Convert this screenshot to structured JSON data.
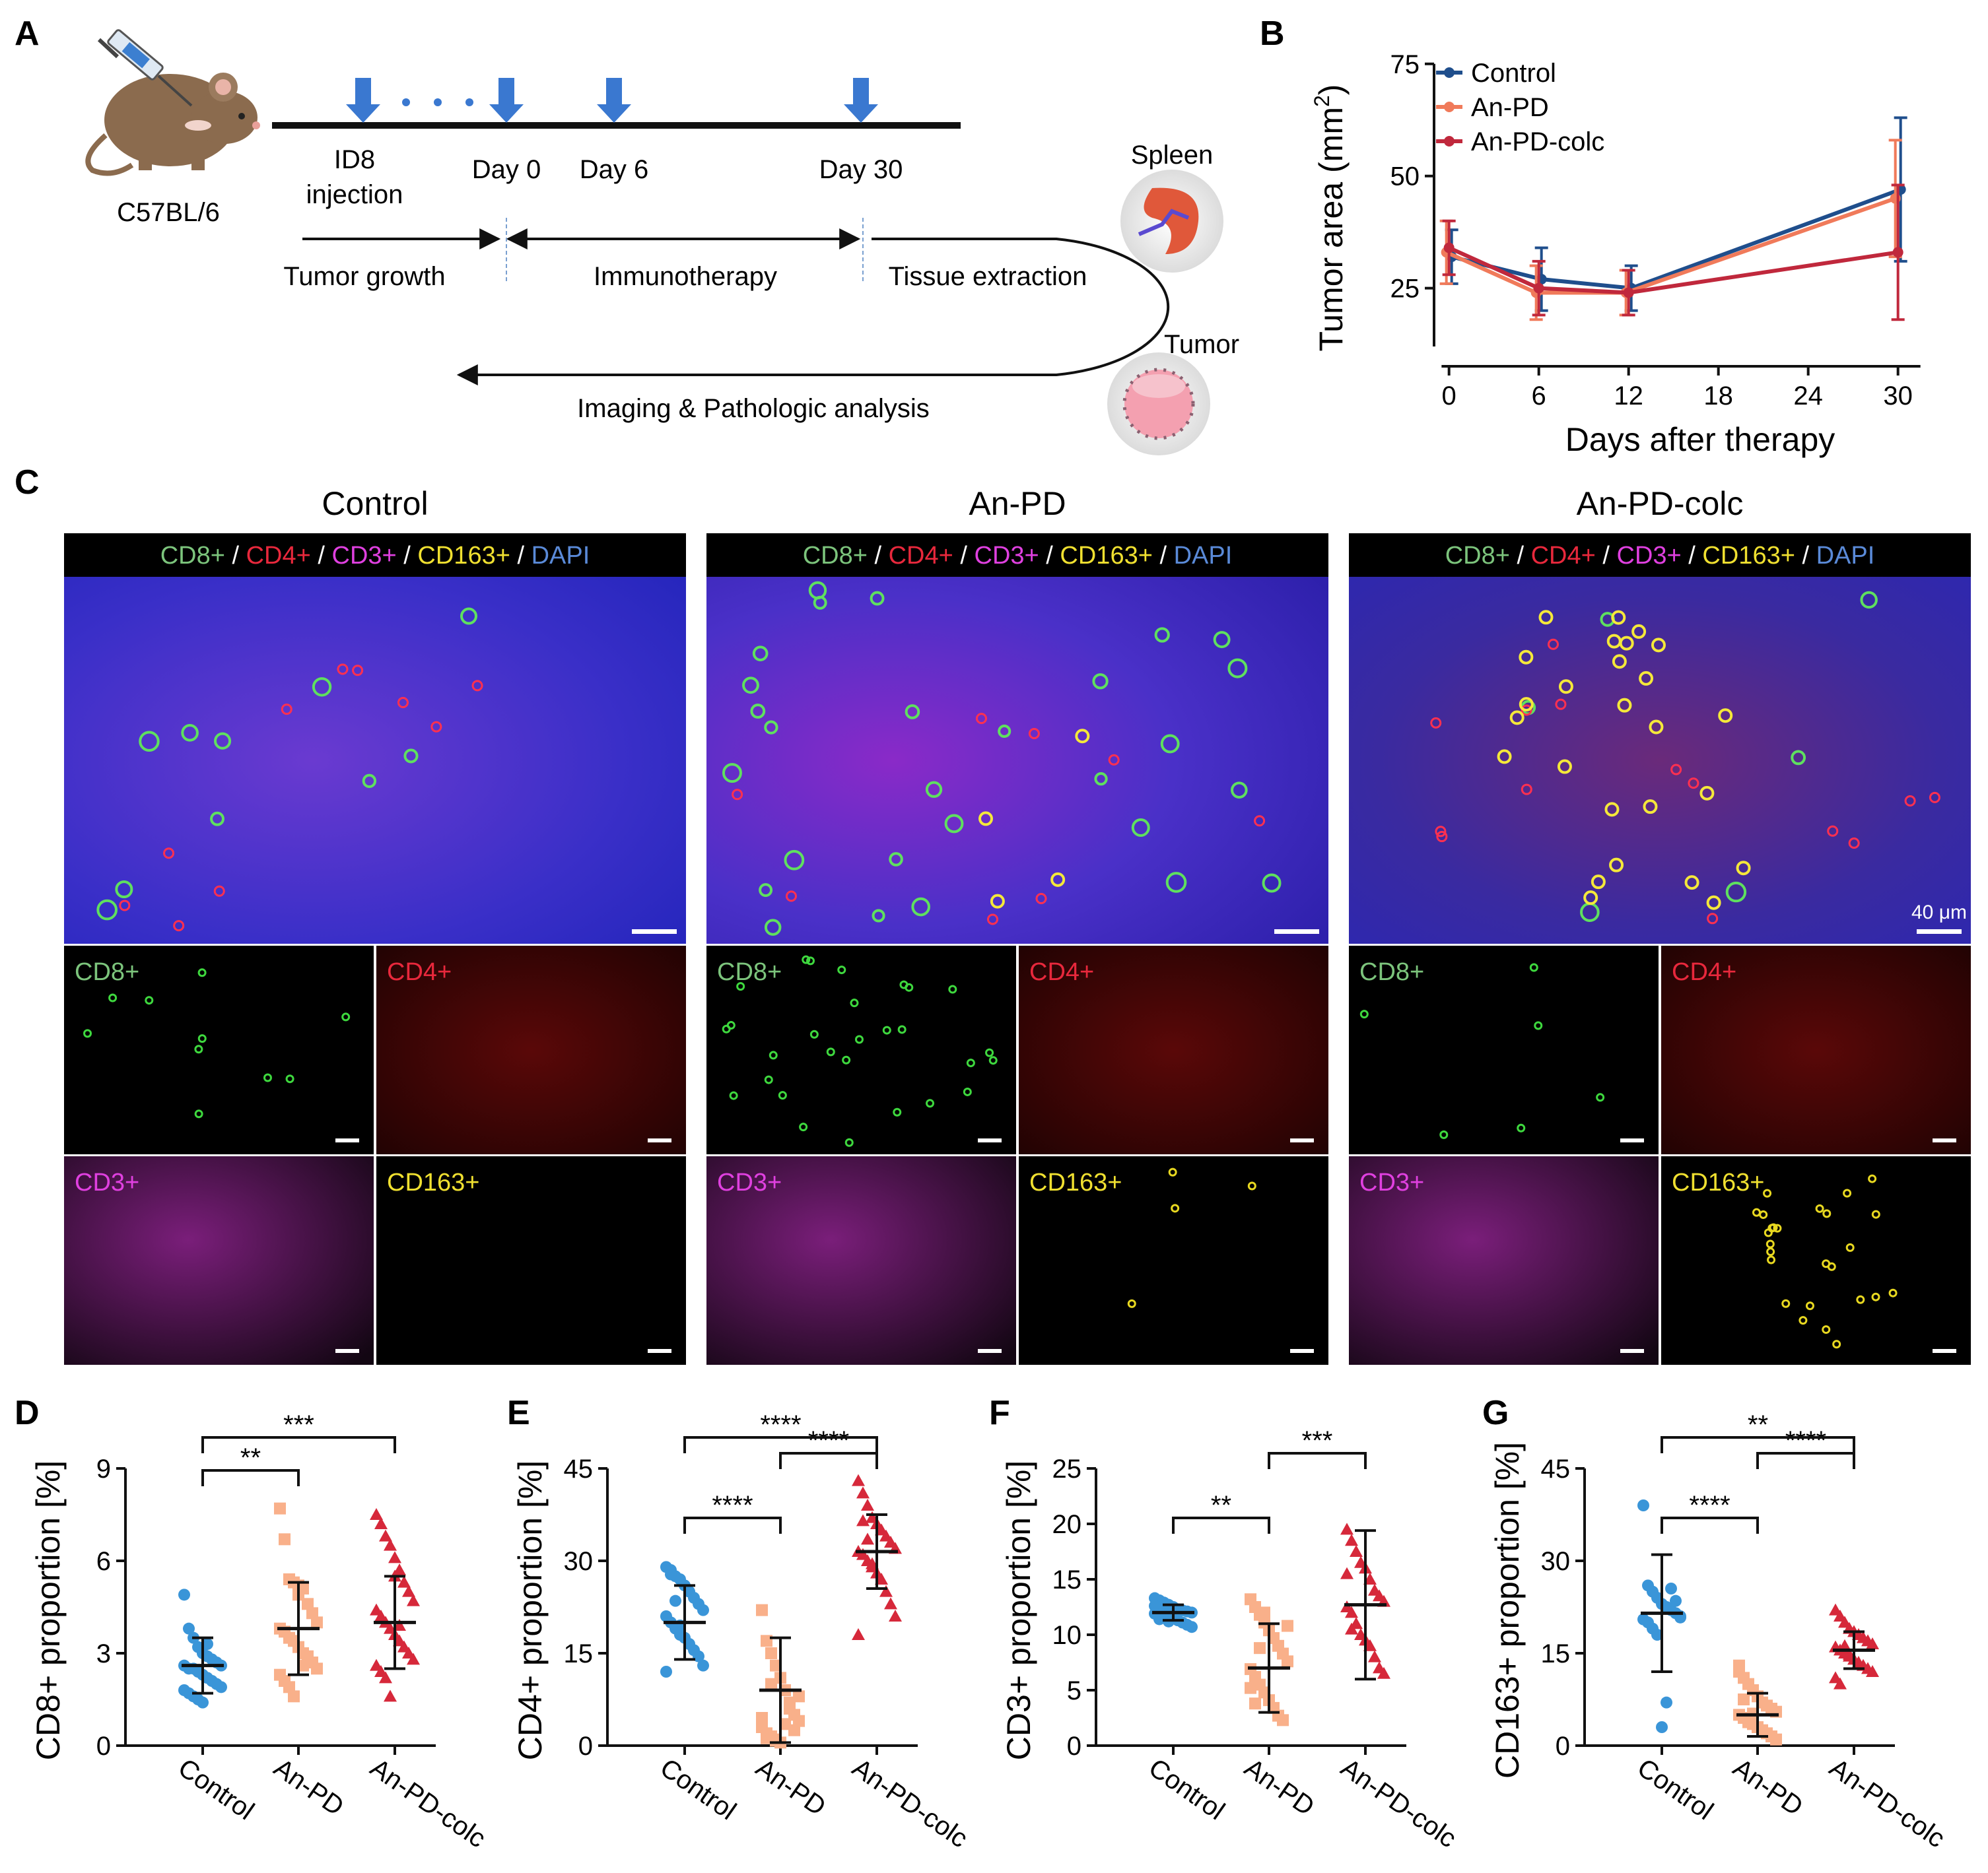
{
  "panel_letters": {
    "a": "A",
    "b": "B",
    "c": "C",
    "d": "D",
    "e": "E",
    "f": "F",
    "g": "G"
  },
  "schematic": {
    "mouse_label": "C57BL/6",
    "events": [
      {
        "line1": "ID8",
        "line2": "injection"
      },
      {
        "line1": "Day 0",
        "line2": ""
      },
      {
        "line1": "Day 6",
        "line2": ""
      },
      {
        "line1": "Day 30",
        "line2": ""
      }
    ],
    "phases": [
      "Tumor growth",
      "Immunotherapy",
      "Tissue extraction"
    ],
    "return_label": "Imaging & Pathologic analysis",
    "organs": [
      "Spleen",
      "Tumor"
    ]
  },
  "colors": {
    "control": "#1f4e8c",
    "anpd": "#f07a5a",
    "anpdcolc": "#c0283c",
    "dot_control": "#3a95d8",
    "dot_anpd": "#f9b08a",
    "dot_colc": "#d6283a",
    "cd8": "#7cc47c",
    "cd4": "#e8283c",
    "cd3": "#e040e0",
    "cd163": "#f0e030",
    "dapi": "#5a8ad8"
  },
  "chart_data": [
    {
      "id": "B",
      "type": "line",
      "title": "",
      "xlabel": "Days after therapy",
      "ylabel": "Tumor area (mm",
      "ylabel_sup": "2",
      "ylabel_end": ")",
      "xticks": [
        0,
        6,
        12,
        18,
        24,
        30
      ],
      "yticks": [
        25,
        50,
        75
      ],
      "xlim": [
        -1,
        32
      ],
      "ylim": [
        12,
        76
      ],
      "series": [
        {
          "name": "Control",
          "x": [
            0,
            6,
            12,
            30
          ],
          "y": [
            32,
            27,
            25,
            47
          ],
          "err": [
            6,
            7,
            5,
            16
          ]
        },
        {
          "name": "An-PD",
          "x": [
            0,
            6,
            12,
            30
          ],
          "y": [
            33,
            24,
            24,
            45
          ],
          "err": [
            7,
            6,
            5,
            13
          ]
        },
        {
          "name": "An-PD-colc",
          "x": [
            0,
            6,
            12,
            30
          ],
          "y": [
            34,
            25,
            24,
            33
          ],
          "err": [
            6,
            6,
            5,
            15
          ]
        }
      ]
    },
    {
      "id": "D",
      "type": "scatter",
      "ylabel": "CD8+ proportion [%]",
      "categories": [
        "Control",
        "An-PD",
        "An-PD-colc"
      ],
      "yticks": [
        0,
        3,
        6,
        9
      ],
      "ylim": [
        0,
        9
      ],
      "means": [
        2.6,
        3.8,
        4.0
      ],
      "sd": [
        0.9,
        1.5,
        1.5
      ],
      "points": [
        [
          4.9,
          3.8,
          3.5,
          3.2,
          3.0,
          2.9,
          2.8,
          2.7,
          2.6,
          2.6,
          2.5,
          2.5,
          2.4,
          2.3,
          2.2,
          2.1,
          2.0,
          1.9,
          1.8,
          1.7,
          1.6,
          1.5,
          1.4,
          3.3
        ],
        [
          7.7,
          6.7,
          5.4,
          5.3,
          5.2,
          5.1,
          4.6,
          4.3,
          4.0,
          3.8,
          3.7,
          3.5,
          3.4,
          3.2,
          3.0,
          2.9,
          2.7,
          2.5,
          2.3,
          2.1,
          1.9,
          1.6,
          4.9,
          2.6
        ],
        [
          7.5,
          7.2,
          6.8,
          6.5,
          6.1,
          5.7,
          5.3,
          5.0,
          4.7,
          4.4,
          4.2,
          4.0,
          3.8,
          3.6,
          3.4,
          3.2,
          3.0,
          2.8,
          2.6,
          2.4,
          2.2,
          1.6,
          5.5,
          3.9
        ]
      ],
      "comparisons": [
        {
          "from": 0,
          "to": 1,
          "label": "**"
        },
        {
          "from": 0,
          "to": 2,
          "label": "***"
        }
      ]
    },
    {
      "id": "E",
      "type": "scatter",
      "ylabel": "CD4+ proportion [%]",
      "categories": [
        "Control",
        "An-PD",
        "An-PD-colc"
      ],
      "yticks": [
        0,
        15,
        30,
        45
      ],
      "ylim": [
        0,
        45
      ],
      "means": [
        20,
        9,
        31.5
      ],
      "sd": [
        6,
        8.5,
        6
      ],
      "points": [
        [
          29,
          28.5,
          27.5,
          27,
          26,
          25,
          24,
          23,
          22,
          21,
          20,
          19,
          18,
          17.5,
          16.5,
          15.5,
          14.5,
          13,
          12,
          27.8,
          23.5,
          19.5
        ],
        [
          22,
          17,
          15,
          13,
          11,
          9,
          7,
          5,
          4,
          3,
          2,
          1.5,
          1,
          0.5,
          3.5,
          6,
          2.5,
          8,
          4.5,
          1.2,
          10,
          0.8
        ],
        [
          43,
          41,
          39,
          37,
          36,
          35,
          34,
          33,
          32,
          31.5,
          31,
          30,
          29,
          28,
          27,
          25,
          23,
          21,
          18,
          36.5,
          33.5,
          29.5
        ]
      ],
      "comparisons": [
        {
          "from": 0,
          "to": 1,
          "label": "****"
        },
        {
          "from": 1,
          "to": 2,
          "label": "****"
        },
        {
          "from": 0,
          "to": 2,
          "label": "****"
        }
      ]
    },
    {
      "id": "F",
      "type": "scatter",
      "ylabel": "CD3+ proportion [%]",
      "categories": [
        "Control",
        "An-PD",
        "An-PD-colc"
      ],
      "yticks": [
        0,
        5,
        10,
        15,
        20,
        25
      ],
      "ylim": [
        0,
        25
      ],
      "means": [
        12,
        7,
        12.7
      ],
      "sd": [
        0.7,
        4,
        6.7
      ],
      "points": [
        [
          13.3,
          13.1,
          12.9,
          12.7,
          12.5,
          12.3,
          12.2,
          12.1,
          12.0,
          11.9,
          11.8,
          11.7,
          11.6,
          11.5,
          11.3,
          11.1,
          10.9,
          10.7,
          12.6,
          11.4,
          12.4,
          11.2
        ],
        [
          13.2,
          12.5,
          11.8,
          11.1,
          10.4,
          9.7,
          9.0,
          8.3,
          7.6,
          6.9,
          6.2,
          5.5,
          4.8,
          4.1,
          3.4,
          2.7,
          2.3,
          10.8,
          5.2,
          3.8,
          8.8,
          12.0
        ],
        [
          19.5,
          18.5,
          17.5,
          16.5,
          16,
          15,
          14,
          13.5,
          13,
          12.5,
          12,
          11,
          10,
          9.5,
          9,
          8,
          7,
          6.5,
          15.5,
          10.5
        ]
      ],
      "comparisons": [
        {
          "from": 0,
          "to": 1,
          "label": "**"
        },
        {
          "from": 1,
          "to": 2,
          "label": "***"
        }
      ]
    },
    {
      "id": "G",
      "type": "scatter",
      "ylabel": "CD163+ proportion [%]",
      "categories": [
        "Control",
        "An-PD",
        "An-PD-colc"
      ],
      "yticks": [
        0,
        15,
        30,
        45
      ],
      "ylim": [
        0,
        45
      ],
      "means": [
        21.5,
        5,
        15.5
      ],
      "sd": [
        9.5,
        3.5,
        3
      ],
      "points": [
        [
          39,
          26,
          25,
          24,
          23,
          22.5,
          22,
          21.5,
          21,
          20.5,
          20,
          19,
          18,
          3,
          7,
          25.5,
          23.5,
          20.8
        ],
        [
          13,
          11,
          10,
          9,
          8,
          7,
          6.5,
          6,
          5.5,
          5,
          4.5,
          4,
          3.5,
          3,
          2.5,
          2,
          1.5,
          1,
          12,
          7.5,
          3.8,
          5.2
        ],
        [
          22,
          21,
          20,
          19,
          18.5,
          18,
          17.5,
          17,
          16.5,
          16,
          15.5,
          15,
          14.5,
          14,
          13.5,
          13,
          12.5,
          12,
          11,
          10,
          16.2,
          14.8
        ]
      ],
      "comparisons": [
        {
          "from": 0,
          "to": 1,
          "label": "****"
        },
        {
          "from": 1,
          "to": 2,
          "label": "****"
        },
        {
          "from": 0,
          "to": 2,
          "label": "**"
        }
      ]
    }
  ],
  "microscopy": {
    "groups": [
      "Control",
      "An-PD",
      "An-PD-colc"
    ],
    "merged_legend": {
      "cd8": "CD8+",
      "cd4": "CD4+",
      "cd3": "CD3+",
      "cd163": "CD163+",
      "dapi": "DAPI",
      "sep": " / "
    },
    "scale_bar_label": "40 μm",
    "channels": [
      "CD8+",
      "CD4+",
      "CD3+",
      "CD163+"
    ]
  }
}
